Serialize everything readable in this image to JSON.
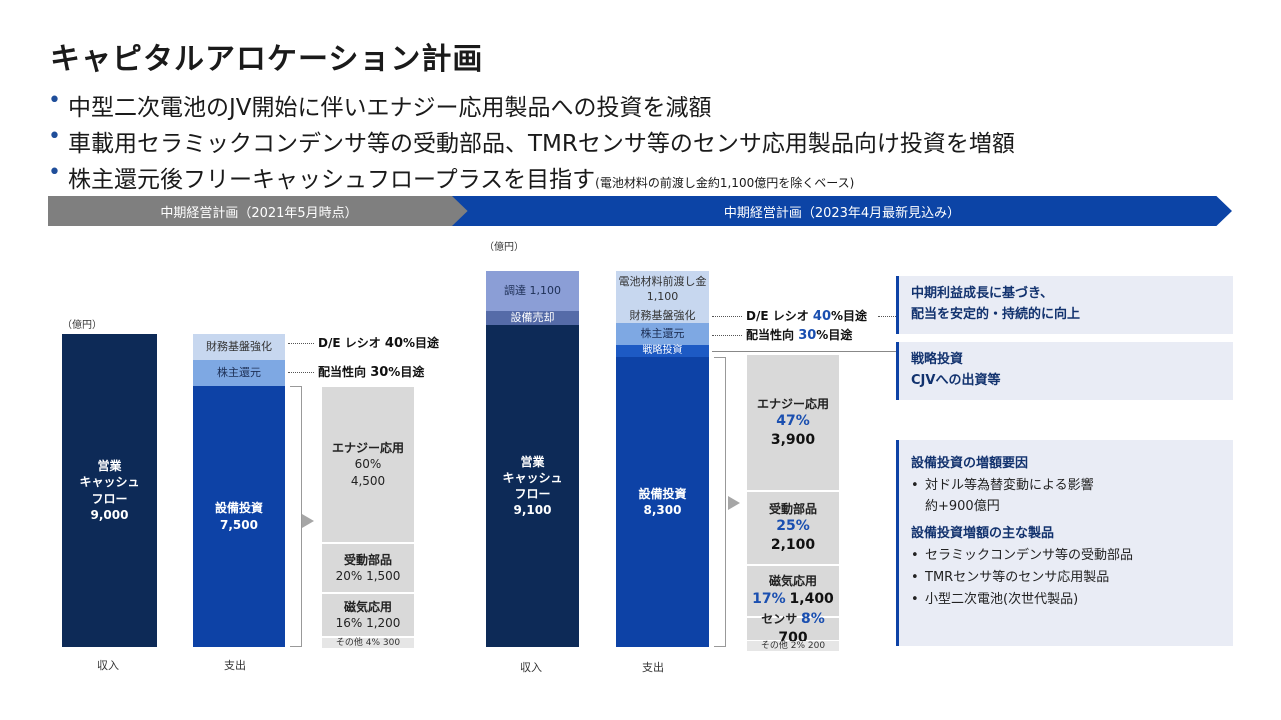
{
  "title": "キャピタルアロケーション計画",
  "bullets": [
    {
      "text": "中型二次電池のJV開始に伴いエナジー応用製品への投資を減額",
      "note": ""
    },
    {
      "text": "車載用セラミックコンデンサ等の受動部品、TMRセンサ等のセンサ応用製品向け投資を増額",
      "note": ""
    },
    {
      "text": "株主還元後フリーキャッシュフロープラスを目指す",
      "note": "(電池材料の前渡し金約1,100億円を除くベース)"
    }
  ],
  "banners": {
    "old": "中期経営計画（2021年5月時点）",
    "new": "中期経営計画（2023年4月最新見込み）"
  },
  "unit_label": "（億円）",
  "chart_data": [
    {
      "type": "stacked-bar",
      "title": "中期経営計画（2021年5月時点）",
      "unit": "億円",
      "income": {
        "label": "収入",
        "segments": [
          {
            "name": "営業キャッシュフロー",
            "label_lines": [
              "営業",
              "キャッシュ",
              "フロー"
            ],
            "value": 9000,
            "display": "9,000"
          }
        ]
      },
      "expense": {
        "label": "支出",
        "segments": [
          {
            "name": "財務基盤強化",
            "value": null
          },
          {
            "name": "株主還元",
            "value": null
          },
          {
            "name": "設備投資",
            "value": 7500,
            "display": "7,500"
          }
        ]
      },
      "capex_breakdown": [
        {
          "name": "エナジー応用",
          "pct": "60%",
          "value": 4500,
          "display": "4,500"
        },
        {
          "name": "受動部品",
          "pct": "20%",
          "value": 1500,
          "display": "1,500"
        },
        {
          "name": "磁気応用",
          "pct": "16%",
          "value": 1200,
          "display": "1,200"
        },
        {
          "name": "その他",
          "pct": "4%",
          "value": 300,
          "display": "300"
        }
      ],
      "annotations": [
        {
          "prefix": "D/E レシオ ",
          "value": "40",
          "unit": "%",
          "suffix": "目途"
        },
        {
          "prefix": "配当性向 ",
          "value": "30",
          "unit": "%",
          "suffix": "目途"
        }
      ]
    },
    {
      "type": "stacked-bar",
      "title": "中期経営計画（2023年4月最新見込み）",
      "unit": "億円",
      "income": {
        "label": "収入",
        "segments": [
          {
            "name": "調達",
            "value": 1100,
            "display": "調達 1,100"
          },
          {
            "name": "設備売却",
            "value": null
          },
          {
            "name": "営業キャッシュフロー",
            "label_lines": [
              "営業",
              "キャッシュ",
              "フロー"
            ],
            "value": 9100,
            "display": "9,100"
          }
        ]
      },
      "expense": {
        "label": "支出",
        "segments": [
          {
            "name": "電池材料前渡し金",
            "value": 1100,
            "display": "1,100"
          },
          {
            "name": "財務基盤強化",
            "value": null
          },
          {
            "name": "株主還元",
            "value": null
          },
          {
            "name": "戦略投資",
            "value": null
          },
          {
            "name": "設備投資",
            "value": 8300,
            "display": "8,300"
          }
        ]
      },
      "capex_breakdown": [
        {
          "name": "エナジー応用",
          "pct": "47%",
          "value": 3900,
          "display": "3,900"
        },
        {
          "name": "受動部品",
          "pct": "25%",
          "value": 2100,
          "display": "2,100"
        },
        {
          "name": "磁気応用",
          "pct": "17%",
          "value": 1400,
          "display": "1,400"
        },
        {
          "name": "センサ",
          "pct": "8%",
          "value": 700,
          "display": "700"
        },
        {
          "name": "その他",
          "pct": "2%",
          "value": 200,
          "display": "200"
        }
      ],
      "annotations": [
        {
          "prefix": "D/E レシオ ",
          "value": "40",
          "unit": "%",
          "suffix": "目途"
        },
        {
          "prefix": "配当性向 ",
          "value": "30",
          "unit": "%",
          "suffix": "目途"
        }
      ]
    }
  ],
  "callouts": {
    "dividend": [
      "中期利益成長に基づき、",
      "配当を安定的・持続的に向上"
    ],
    "strategic": [
      "戦略投資",
      "CJVへの出資等"
    ],
    "capex": {
      "heading1": "設備投資の増額要因",
      "item1": "対ドル等為替変動による影響",
      "item1_sub": "約+900億円",
      "heading2": "設備投資増額の主な製品",
      "items2": [
        "セラミックコンデンサ等の受動部品",
        "TMRセンサ等のセンサ応用製品",
        "小型二次電池(次世代製品)"
      ]
    }
  },
  "colors": {
    "navy": "#0d2a57",
    "blue": "#0d42a6",
    "accent_text": "#1a4fb0",
    "gray_banner": "#7f7f7f"
  }
}
